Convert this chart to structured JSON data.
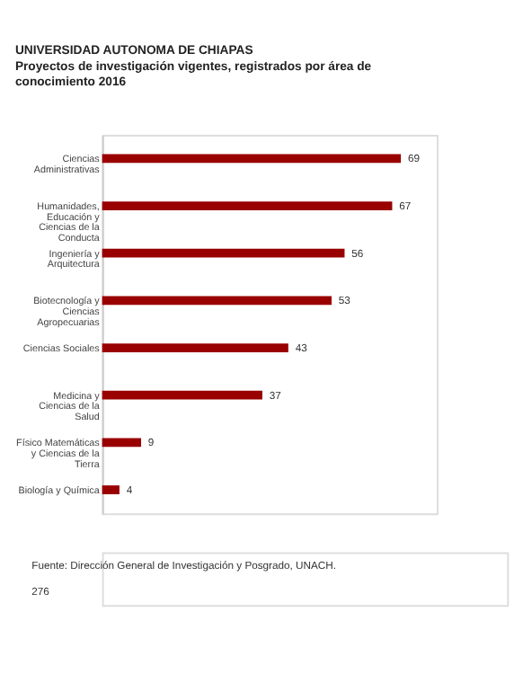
{
  "chart_data": {
    "type": "bar",
    "orientation": "horizontal",
    "title": "Proyectos de investigación vigentes, registrados por área de conocimiento 2016",
    "categories": [
      "Ciencias Administrativas",
      "Humanidades, Educación y Ciencias de la Conducta",
      "Ingeniería y Arquitectura",
      "Biotecnología y Ciencias Agropecuarias",
      "Ciencias Sociales",
      "Medicina y Ciencias de la Salud",
      "Físico Matemáticas y Ciencias de la Tierra",
      "Biología y Química"
    ],
    "values": [
      69,
      67,
      56,
      53,
      43,
      37,
      9,
      4
    ],
    "color": "#990000",
    "data_labels": true,
    "annotations": [
      "UNIVERSIDAD AUTONOMA DE CHIAPAS",
      "Fuente: Dirección General de Investigación y Posgrado, UNACH.",
      "276"
    ]
  }
}
